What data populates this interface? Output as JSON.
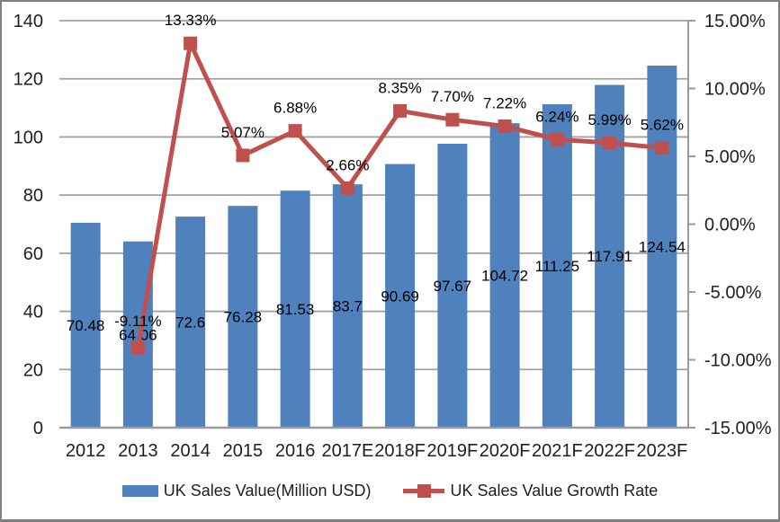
{
  "chart_data": {
    "type": "combo",
    "title": "",
    "categories": [
      "2012",
      "2013",
      "2014",
      "2015",
      "2016",
      "2017E",
      "2018F",
      "2019F",
      "2020F",
      "2021F",
      "2022F",
      "2023F"
    ],
    "series": [
      {
        "name": "UK Sales Value(Million USD)",
        "type": "bar",
        "axis": "left",
        "color": "#4F81BD",
        "values": [
          70.48,
          64.06,
          72.6,
          76.28,
          81.53,
          83.7,
          90.69,
          97.67,
          104.72,
          111.25,
          117.91,
          124.54
        ],
        "labels": [
          "70.48",
          "64.06",
          "72.6",
          "76.28",
          "81.53",
          "83.7",
          "90.69",
          "97.67",
          "104.72",
          "111.25",
          "117.91",
          "124.54"
        ]
      },
      {
        "name": "UK Sales Value Growth Rate",
        "type": "line",
        "axis": "right",
        "color": "#C0504D",
        "values": [
          null,
          -9.11,
          13.33,
          5.07,
          6.88,
          2.66,
          8.35,
          7.7,
          7.22,
          6.24,
          5.99,
          5.62
        ],
        "labels": [
          null,
          "-9.11%",
          "13.33%",
          "5.07%",
          "6.88%",
          "2.66%",
          "8.35%",
          "7.70%",
          "7.22%",
          "6.24%",
          "5.99%",
          "5.62%"
        ]
      }
    ],
    "left_axis": {
      "min": 0,
      "max": 140,
      "step": 20,
      "ticks": [
        "0",
        "20",
        "40",
        "60",
        "80",
        "100",
        "120",
        "140"
      ]
    },
    "right_axis": {
      "min": -15,
      "max": 15,
      "step": 5,
      "ticks": [
        "-15.00%",
        "-10.00%",
        "-5.00%",
        "0.00%",
        "5.00%",
        "10.00%",
        "15.00%"
      ]
    },
    "grid": true,
    "legend_position": "bottom",
    "colors": {
      "bar": "#4F81BD",
      "line": "#C0504D",
      "gridline": "#A0A0A0",
      "axis": "#9A9A9A",
      "text": "#1F1F1F",
      "data_label_text": "#000000",
      "frame_border": "#7F7F7F"
    }
  }
}
